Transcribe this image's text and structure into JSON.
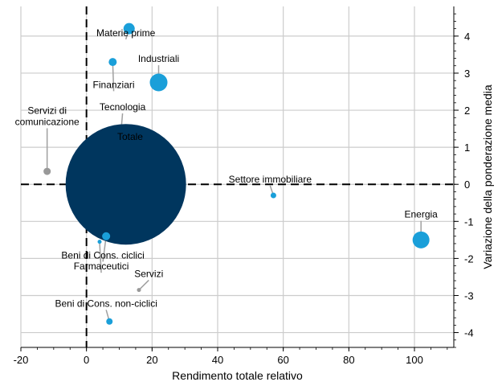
{
  "chart_data": {
    "type": "scatter",
    "title": "",
    "xlabel": "Rendimento totale relativo",
    "ylabel": "Variazione della ponderazione media",
    "xlim": [
      -20,
      112
    ],
    "ylim": [
      -4.4,
      4.8
    ],
    "xticks": [
      "-20",
      "0",
      "20",
      "40",
      "60",
      "80",
      "100"
    ],
    "yticks": [
      "-4",
      "-3",
      "-2",
      "-1",
      "0",
      "1",
      "2",
      "3",
      "4"
    ],
    "grid": true,
    "reference_lines": {
      "x": 0,
      "y": 0,
      "style": "dashed"
    },
    "colors": {
      "default": "#1a9fd9",
      "gray": "#999999",
      "dark": "#00365e"
    },
    "points": [
      {
        "name": "Materie prime",
        "x": 13,
        "y": 4.2,
        "size": 14,
        "color": "#1a9fd9",
        "label": [
          12,
          4.0
        ]
      },
      {
        "name": "Industriali",
        "x": 22,
        "y": 2.75,
        "size": 22,
        "color": "#1a9fd9",
        "label": [
          22,
          3.3
        ]
      },
      {
        "name": "Finanziari",
        "x": 8,
        "y": 3.3,
        "size": 10,
        "color": "#1a9fd9",
        "label": [
          8.3,
          2.6
        ]
      },
      {
        "name": "Tecnologia",
        "x": 9,
        "y": -0.2,
        "size": 7,
        "color": "#1a9fd9",
        "label": [
          11,
          2.0
        ]
      },
      {
        "name": "Servizi di\ncomunicazione",
        "x": -12,
        "y": 0.35,
        "size": 9,
        "color": "#999999",
        "label": [
          -12,
          1.6
        ]
      },
      {
        "name": "Totale",
        "x": 12,
        "y": 0.0,
        "size": 150,
        "color": "#00365e",
        "label": [
          13.3,
          1.2
        ]
      },
      {
        "name": "Settore immobiliare",
        "x": 57,
        "y": -0.3,
        "size": 7,
        "color": "#1a9fd9",
        "label": [
          56,
          0.05
        ]
      },
      {
        "name": "Energia",
        "x": 102,
        "y": -1.5,
        "size": 21,
        "color": "#1a9fd9",
        "label": [
          102,
          -0.9
        ]
      },
      {
        "name": "Beni di Cons. ciclici",
        "x": 6,
        "y": -1.4,
        "size": 10,
        "color": "#1a9fd9",
        "label": [
          5,
          -2.0
        ]
      },
      {
        "name": "Farmaceutici",
        "x": 4,
        "y": -1.55,
        "size": 5,
        "color": "#1a9fd9",
        "label": [
          4.5,
          -2.3
        ]
      },
      {
        "name": "Servizi",
        "x": 16,
        "y": -2.85,
        "size": 5,
        "color": "#999999",
        "label": [
          19,
          -2.5
        ]
      },
      {
        "name": "Beni di Cons. non-ciclici",
        "x": 7,
        "y": -3.7,
        "size": 8,
        "color": "#1a9fd9",
        "label": [
          6,
          -3.3
        ]
      }
    ]
  }
}
